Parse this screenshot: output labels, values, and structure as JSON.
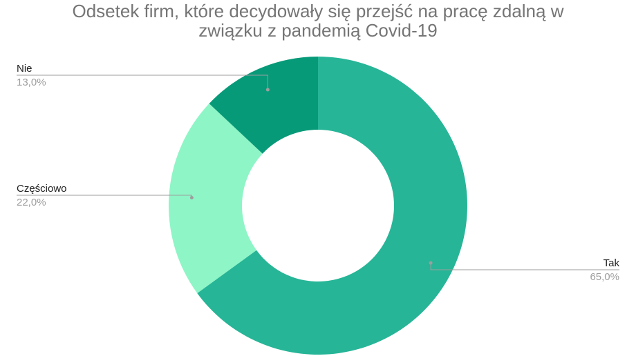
{
  "chart_data": {
    "type": "pie",
    "variant": "donut",
    "title_lines": [
      "Odsetek firm, które decydowały się przejść na pracę zdalną w",
      "związku z pandemią Covid-19"
    ],
    "slices": [
      {
        "label": "Tak",
        "value": 65.0,
        "value_label": "65,0%",
        "color": "#26b597"
      },
      {
        "label": "Częściowo",
        "value": 22.0,
        "value_label": "22,0%",
        "color": "#8ef5c6"
      },
      {
        "label": "Nie",
        "value": 13.0,
        "value_label": "13,0%",
        "color": "#079a79"
      }
    ],
    "start_angle": "12 o'clock",
    "direction": "clockwise",
    "legend": "none",
    "label_placement": "outside with leader lines"
  }
}
